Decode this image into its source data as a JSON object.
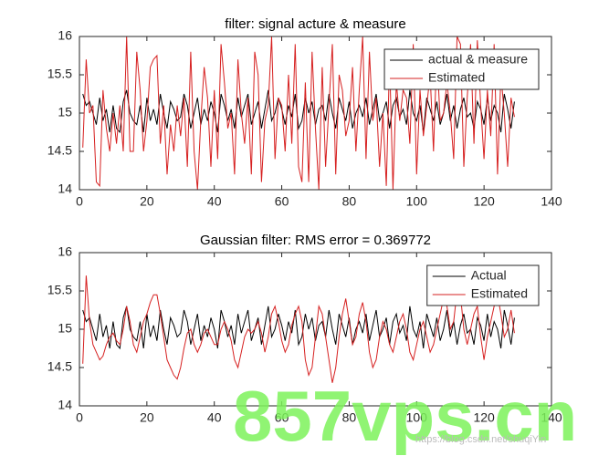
{
  "chart_data": [
    {
      "type": "line",
      "title": "filter: signal acture & measure",
      "x": [
        1,
        2,
        3,
        4,
        5,
        6,
        7,
        8,
        9,
        10,
        11,
        12,
        13,
        14,
        15,
        16,
        17,
        18,
        19,
        20,
        21,
        22,
        23,
        24,
        25,
        26,
        27,
        28,
        29,
        30,
        31,
        32,
        33,
        34,
        35,
        36,
        37,
        38,
        39,
        40,
        41,
        42,
        43,
        44,
        45,
        46,
        47,
        48,
        49,
        50,
        51,
        52,
        53,
        54,
        55,
        56,
        57,
        58,
        59,
        60,
        61,
        62,
        63,
        64,
        65,
        66,
        67,
        68,
        69,
        70,
        71,
        72,
        73,
        74,
        75,
        76,
        77,
        78,
        79,
        80,
        81,
        82,
        83,
        84,
        85,
        86,
        87,
        88,
        89,
        90,
        91,
        92,
        93,
        94,
        95,
        96,
        97,
        98,
        99,
        100,
        101,
        102,
        103,
        104,
        105,
        106,
        107,
        108,
        109,
        110,
        111,
        112,
        113,
        114,
        115,
        116,
        117,
        118,
        119,
        120,
        121,
        122,
        123,
        124,
        125,
        126,
        127,
        128,
        129
      ],
      "series": [
        {
          "name": "actual & measure",
          "color": "#000000",
          "values": [
            15.25,
            15.1,
            15.15,
            15.0,
            14.85,
            15.2,
            14.9,
            15.05,
            14.75,
            15.1,
            14.8,
            14.75,
            15.15,
            15.3,
            15.0,
            14.9,
            14.85,
            15.1,
            14.75,
            15.2,
            14.9,
            15.05,
            14.85,
            15.25,
            15.0,
            14.8,
            15.15,
            15.05,
            14.9,
            14.95,
            15.25,
            15.1,
            14.8,
            15.0,
            15.2,
            14.85,
            15.05,
            14.9,
            15.15,
            15.0,
            14.75,
            15.25,
            15.1,
            14.9,
            15.05,
            14.8,
            15.2,
            14.95,
            15.1,
            15.25,
            14.85,
            15.0,
            15.15,
            14.8,
            15.05,
            15.3,
            14.9,
            15.0,
            15.2,
            15.05,
            14.85,
            15.1,
            14.95,
            15.25,
            14.8,
            14.9,
            15.2,
            15.0,
            15.15,
            14.85,
            15.05,
            15.1,
            14.9,
            15.25,
            15.0,
            14.8,
            15.2,
            15.05,
            14.9,
            15.15,
            14.8,
            15.0,
            15.1,
            14.95,
            15.2,
            14.85,
            15.05,
            15.25,
            14.9,
            15.0,
            15.15,
            14.8,
            15.1,
            15.2,
            14.95,
            15.05,
            14.85,
            15.3,
            15.0,
            14.9,
            15.1,
            14.75,
            15.2,
            15.05,
            14.9,
            15.15,
            14.85,
            15.0,
            15.25,
            14.9,
            15.1,
            14.8,
            15.05,
            15.2,
            14.95,
            15.0,
            14.8,
            15.15,
            15.05,
            14.85,
            15.2,
            14.9,
            15.1,
            15.0,
            14.75,
            15.25,
            15.05,
            14.8,
            15.15
          ]
        },
        {
          "name": "Estimated",
          "color": "#d62020",
          "values": [
            14.55,
            15.7,
            15.0,
            15.1,
            14.1,
            14.05,
            15.3,
            14.8,
            14.5,
            15.0,
            14.6,
            15.1,
            14.5,
            16.0,
            14.5,
            14.5,
            15.8,
            15.3,
            14.5,
            14.9,
            15.6,
            15.7,
            15.75,
            14.6,
            15.1,
            14.2,
            14.85,
            14.5,
            15.1,
            14.7,
            15.2,
            14.3,
            15.8,
            14.5,
            14.0,
            14.9,
            15.6,
            15.2,
            14.3,
            15.3,
            14.4,
            15.9,
            15.4,
            14.8,
            15.0,
            14.2,
            15.7,
            15.0,
            14.6,
            15.2,
            14.2,
            15.8,
            15.5,
            14.1,
            14.9,
            15.1,
            16.0,
            14.4,
            15.2,
            15.1,
            14.5,
            15.5,
            14.6,
            15.9,
            14.3,
            14.1,
            15.4,
            14.1,
            15.8,
            14.8,
            14.0,
            15.6,
            14.3,
            15.1,
            15.9,
            14.2,
            15.5,
            15.3,
            14.7,
            14.9,
            15.6,
            14.5,
            15.3,
            16.0,
            14.4,
            15.8,
            14.9,
            15.2,
            14.3,
            15.0,
            14.05,
            15.7,
            14.0,
            15.4,
            14.9,
            15.3,
            15.2,
            14.6,
            15.9,
            14.2,
            15.3,
            14.7,
            15.1,
            15.5,
            14.5,
            15.8,
            14.9,
            15.0,
            15.4,
            15.0,
            14.4,
            16.0,
            15.9,
            14.3,
            15.2,
            15.9,
            14.6,
            15.95,
            15.1,
            14.4,
            15.3,
            14.7,
            15.9,
            14.2,
            15.5,
            15.0,
            14.3,
            15.2,
            14.95
          ]
        }
      ],
      "xlim": [
        0,
        140
      ],
      "xticks": [
        0,
        20,
        40,
        60,
        80,
        100,
        120,
        140
      ],
      "ylim": [
        14,
        16
      ],
      "yticks": [
        14,
        14.5,
        15,
        15.5,
        16
      ],
      "legend": "upper right"
    },
    {
      "type": "line",
      "title": "Gaussian filter: RMS error = 0.369772",
      "x": [
        1,
        2,
        3,
        4,
        5,
        6,
        7,
        8,
        9,
        10,
        11,
        12,
        13,
        14,
        15,
        16,
        17,
        18,
        19,
        20,
        21,
        22,
        23,
        24,
        25,
        26,
        27,
        28,
        29,
        30,
        31,
        32,
        33,
        34,
        35,
        36,
        37,
        38,
        39,
        40,
        41,
        42,
        43,
        44,
        45,
        46,
        47,
        48,
        49,
        50,
        51,
        52,
        53,
        54,
        55,
        56,
        57,
        58,
        59,
        60,
        61,
        62,
        63,
        64,
        65,
        66,
        67,
        68,
        69,
        70,
        71,
        72,
        73,
        74,
        75,
        76,
        77,
        78,
        79,
        80,
        81,
        82,
        83,
        84,
        85,
        86,
        87,
        88,
        89,
        90,
        91,
        92,
        93,
        94,
        95,
        96,
        97,
        98,
        99,
        100,
        101,
        102,
        103,
        104,
        105,
        106,
        107,
        108,
        109,
        110,
        111,
        112,
        113,
        114,
        115,
        116,
        117,
        118,
        119,
        120,
        121,
        122,
        123,
        124,
        125,
        126,
        127,
        128,
        129
      ],
      "series": [
        {
          "name": "Actual",
          "color": "#000000",
          "values": [
            15.25,
            15.1,
            15.15,
            15.0,
            14.85,
            15.2,
            14.9,
            15.05,
            14.75,
            15.1,
            14.8,
            14.75,
            15.15,
            15.3,
            15.0,
            14.9,
            14.85,
            15.1,
            14.75,
            15.2,
            14.9,
            15.05,
            14.85,
            15.25,
            15.0,
            14.8,
            15.15,
            15.05,
            14.9,
            14.95,
            15.25,
            15.1,
            14.8,
            15.0,
            15.2,
            14.85,
            15.05,
            14.9,
            15.15,
            15.0,
            14.75,
            15.25,
            15.1,
            14.9,
            15.05,
            14.8,
            15.2,
            14.95,
            15.1,
            15.25,
            14.85,
            15.0,
            15.15,
            14.8,
            15.05,
            15.3,
            14.9,
            15.0,
            15.2,
            15.05,
            14.85,
            15.1,
            14.95,
            15.25,
            14.8,
            14.9,
            15.2,
            15.0,
            15.15,
            14.85,
            15.05,
            15.1,
            14.9,
            15.25,
            15.0,
            14.8,
            15.2,
            15.05,
            14.9,
            15.15,
            14.8,
            15.0,
            15.1,
            14.95,
            15.2,
            14.85,
            15.05,
            15.25,
            14.9,
            15.0,
            15.15,
            14.8,
            15.1,
            15.2,
            14.95,
            15.05,
            14.85,
            15.3,
            15.0,
            14.9,
            15.1,
            14.75,
            15.2,
            15.05,
            14.9,
            15.15,
            14.85,
            15.0,
            15.25,
            14.9,
            15.1,
            14.8,
            15.05,
            15.2,
            14.95,
            15.0,
            14.8,
            15.15,
            15.05,
            14.85,
            15.2,
            14.9,
            15.1,
            15.0,
            14.75,
            15.25,
            15.05,
            14.8,
            15.15
          ]
        },
        {
          "name": "Estimated",
          "color": "#d62020",
          "values": [
            14.55,
            15.7,
            15.1,
            14.8,
            14.7,
            14.6,
            14.65,
            14.8,
            14.9,
            14.95,
            14.85,
            14.8,
            15.0,
            15.3,
            15.1,
            14.8,
            14.7,
            14.9,
            15.1,
            15.2,
            15.35,
            15.45,
            15.45,
            15.2,
            14.9,
            14.6,
            14.5,
            14.4,
            14.35,
            14.5,
            14.75,
            14.95,
            15.0,
            14.8,
            14.7,
            14.8,
            14.95,
            15.0,
            14.9,
            14.8,
            14.8,
            15.0,
            15.1,
            15.0,
            14.85,
            14.6,
            14.5,
            14.7,
            14.9,
            15.0,
            14.95,
            15.0,
            15.1,
            14.95,
            14.7,
            14.9,
            15.2,
            15.3,
            15.1,
            14.85,
            14.7,
            14.8,
            15.05,
            15.2,
            15.3,
            15.1,
            14.6,
            14.4,
            14.5,
            14.9,
            15.3,
            15.2,
            14.9,
            14.6,
            14.3,
            14.5,
            14.9,
            15.2,
            15.4,
            15.1,
            14.8,
            14.9,
            15.2,
            15.35,
            15.1,
            14.7,
            14.5,
            14.6,
            14.9,
            15.1,
            15.0,
            14.8,
            14.7,
            14.9,
            15.1,
            15.2,
            15.0,
            14.7,
            14.6,
            14.8,
            15.0,
            15.1,
            14.9,
            14.7,
            14.8,
            15.0,
            15.2,
            15.4,
            15.3,
            15.0,
            15.1,
            15.5,
            15.45,
            15.0,
            14.8,
            15.0,
            15.2,
            15.3,
            14.9,
            14.6,
            14.9,
            15.1,
            15.3,
            15.45,
            15.2,
            14.9,
            15.0,
            15.25,
            14.95
          ]
        }
      ],
      "xlim": [
        0,
        140
      ],
      "xticks": [
        0,
        20,
        40,
        60,
        80,
        100,
        120,
        140
      ],
      "ylim": [
        14,
        16
      ],
      "yticks": [
        14,
        14.5,
        15,
        15.5,
        16
      ],
      "legend": "upper right"
    }
  ],
  "watermark": {
    "text": "857vps.cn",
    "url": "https://blog.csdn.net/shuqiYin"
  }
}
